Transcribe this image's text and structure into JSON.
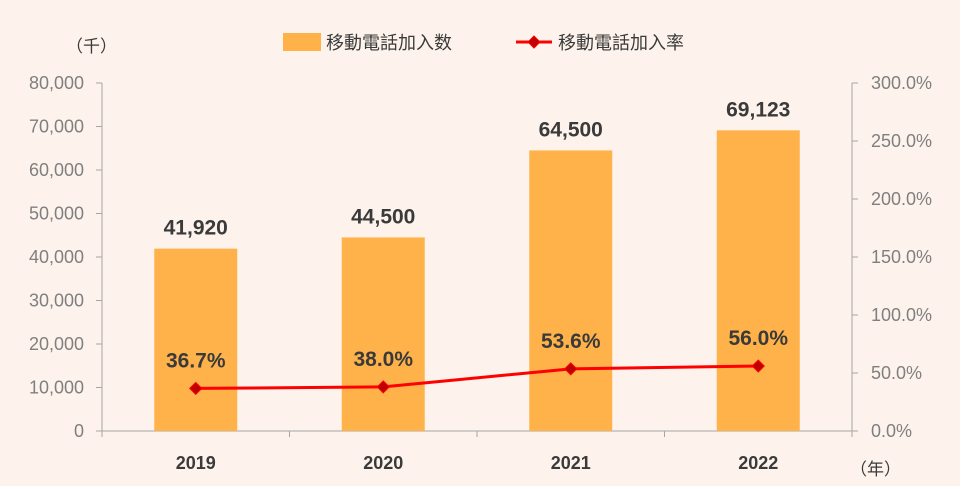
{
  "chart_data": {
    "type": "bar",
    "categories": [
      "2019",
      "2020",
      "2021",
      "2022"
    ],
    "series": [
      {
        "name": "移動電話加入数",
        "type": "bar",
        "axis": "left",
        "values": [
          41920,
          44500,
          64500,
          69123
        ],
        "labels": [
          "41,920",
          "44,500",
          "64,500",
          "69,123"
        ],
        "color": "#ffb24a"
      },
      {
        "name": "移動電話加入率",
        "type": "line",
        "axis": "right",
        "values": [
          36.7,
          38.0,
          53.6,
          56.0
        ],
        "labels": [
          "36.7%",
          "38.0%",
          "53.6%",
          "56.0%"
        ],
        "color": "#ff0000",
        "marker_color": "#c00000"
      }
    ],
    "y_left": {
      "unit_label": "（千）",
      "range": [
        0,
        80000
      ],
      "ticks": [
        "0",
        "10,000",
        "20,000",
        "30,000",
        "40,000",
        "50,000",
        "60,000",
        "70,000",
        "80,000"
      ]
    },
    "y_right": {
      "range": [
        0,
        300
      ],
      "ticks": [
        "0.0%",
        "50.0%",
        "100.0%",
        "150.0%",
        "200.0%",
        "250.0%",
        "300.0%"
      ]
    },
    "x_axis": {
      "unit_label": "（年）"
    },
    "legend_position": "top-center",
    "grid": false
  }
}
